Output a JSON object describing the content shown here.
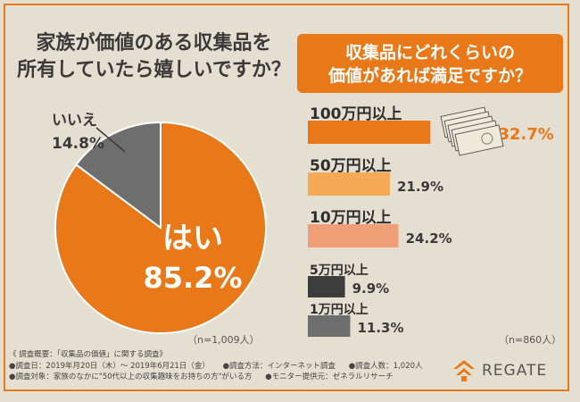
{
  "left_title_line1": "家族が価値のある収集品を",
  "left_title_line2": "所有していたら嬉しいですか？",
  "right_title_line1": "収集品にどれくらいの",
  "right_title_line2": "価値があれば満足ですか？",
  "left_note": "（n=1,009人）",
  "right_note": "（n=860人）",
  "footer": {
    "line1": "《 調査概要：「収集品の価値」に関する調査》",
    "line2a": "●調査日：2019年月20日（木）～ 2019年6月21日（金）",
    "line2b": "●調査方法：インターネット調査",
    "line2c": "●調査人数：1,020人",
    "line3a": "●調査対象：家族のなかに\"50代以上の収集趣味をお持ちの方\"がいる方",
    "line3b": "●モニター提供元：ゼネラルリサーチ"
  },
  "logo_text": "REGATE",
  "colors": {
    "accent": "#e87818",
    "gray": "#6e6e6e"
  },
  "chart_data": [
    {
      "type": "pie",
      "slices": [
        {
          "label": "はい",
          "value": 85.2,
          "display": "85.2%",
          "color": "#e87818"
        },
        {
          "label": "いいえ",
          "value": 14.8,
          "display": "14.8%",
          "color": "#6e6e6e"
        }
      ]
    },
    {
      "type": "bar",
      "orientation": "horizontal",
      "categories": [
        "100万円以上",
        "50万円以上",
        "10万円以上",
        "5万円以上",
        "1万円以上"
      ],
      "values": [
        32.7,
        21.9,
        24.2,
        9.9,
        11.3
      ],
      "display": [
        "32.7%",
        "21.9%",
        "24.2%",
        "9.9%",
        "11.3%"
      ],
      "colors": [
        "#e87818",
        "#f6aa55",
        "#ef9e78",
        "#3d3d3d",
        "#6e6e6e"
      ]
    }
  ]
}
